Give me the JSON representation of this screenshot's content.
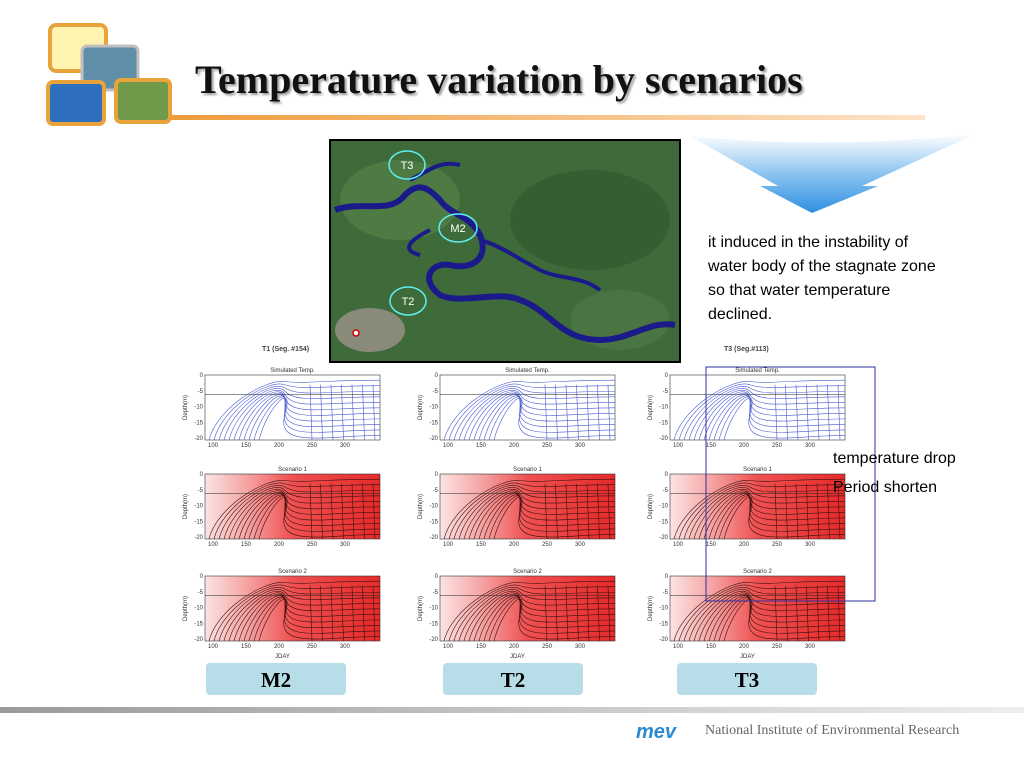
{
  "header": {
    "title": "Temperature variation by scenarios"
  },
  "map": {
    "labels": [
      "T3",
      "M2",
      "T2"
    ]
  },
  "note": {
    "lines": [
      "it induced in the instability of",
      "water body of the stagnate zone",
      "so that water temperature",
      "declined."
    ]
  },
  "callout": [
    "temperature drop",
    "Period shorten"
  ],
  "panels": {
    "group_titles": [
      "T1 (Seg. #154)",
      "T3 (Seg.#113)"
    ],
    "row_titles": [
      "Simulated Temp.",
      "Scenario 1",
      "Scenario 2"
    ],
    "x_label": "JDAY",
    "y_label": "Depth(m)",
    "x_ticks": [
      "100",
      "150",
      "200",
      "250",
      "300"
    ],
    "y_ticks": [
      "0",
      "-5",
      "-10",
      "-15",
      "-20"
    ]
  },
  "stations": [
    "M2",
    "T2",
    "T3"
  ],
  "footer": {
    "logo": "mev",
    "org": "National Institute of Environmental Research"
  }
}
